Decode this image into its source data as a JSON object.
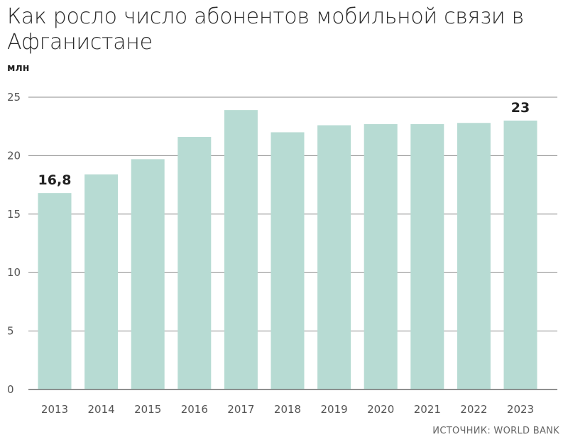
{
  "chart_data": {
    "type": "bar",
    "title": "Как росло число абонентов мобильной связи в Афганистане",
    "unit": "млн",
    "categories": [
      "2013",
      "2014",
      "2015",
      "2016",
      "2017",
      "2018",
      "2019",
      "2020",
      "2021",
      "2022",
      "2023"
    ],
    "values": [
      16.8,
      18.4,
      19.7,
      21.6,
      23.9,
      22.0,
      22.6,
      22.7,
      22.7,
      22.8,
      23.0
    ],
    "data_labels": [
      {
        "index": 0,
        "text": "16,8"
      },
      {
        "index": 10,
        "text": "23"
      }
    ],
    "ylim": [
      0,
      25
    ],
    "yticks": [
      "0",
      "5",
      "10",
      "15",
      "20",
      "25"
    ],
    "grid": true,
    "bar_color": "#b7dbd3",
    "source": "ИСТОЧНИК: WORLD BANK"
  }
}
